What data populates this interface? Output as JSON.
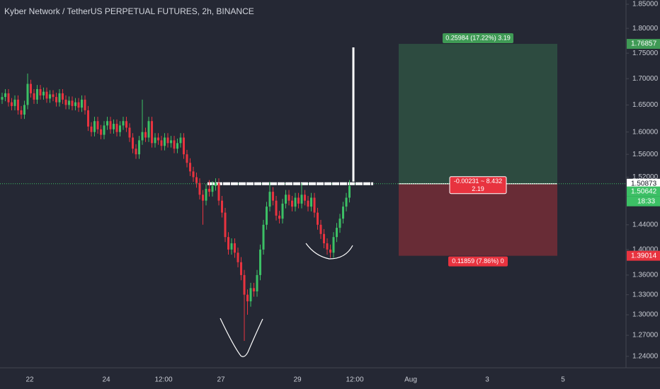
{
  "chart_data": {
    "type": "candlestick",
    "title": "Kyber Network / TetherUS PERPETUAL FUTURES, 2h, BINANCE",
    "log_scale": true,
    "grid": false,
    "up_color": "#3cc065",
    "down_color": "#e8333f",
    "ylim": [
      1.224,
      1.859
    ],
    "yticks": [
      {
        "value": 1.85,
        "label": "1.85000"
      },
      {
        "value": 1.8,
        "label": "1.80000"
      },
      {
        "value": 1.75,
        "label": "1.75000"
      },
      {
        "value": 1.7,
        "label": "1.70000"
      },
      {
        "value": 1.65,
        "label": "1.65000"
      },
      {
        "value": 1.6,
        "label": "1.60000"
      },
      {
        "value": 1.56,
        "label": "1.56000"
      },
      {
        "value": 1.52,
        "label": "1.52000"
      },
      {
        "value": 1.44,
        "label": "1.44000"
      },
      {
        "value": 1.4,
        "label": "1.40000"
      },
      {
        "value": 1.36,
        "label": "1.36000"
      },
      {
        "value": 1.33,
        "label": "1.33000"
      },
      {
        "value": 1.3,
        "label": "1.30000"
      },
      {
        "value": 1.27,
        "label": "1.27000"
      },
      {
        "value": 1.24,
        "label": "1.24000"
      }
    ],
    "xtick_labels": [
      "22",
      "24",
      "12:00",
      "27",
      "29",
      "12:00",
      "Aug",
      "3",
      "5"
    ],
    "ohlc": [
      [
        1.66,
        1.673,
        1.652,
        1.665
      ],
      [
        1.665,
        1.68,
        1.657,
        1.672
      ],
      [
        1.672,
        1.68,
        1.647,
        1.655
      ],
      [
        1.655,
        1.663,
        1.64,
        1.648
      ],
      [
        1.648,
        1.668,
        1.64,
        1.66
      ],
      [
        1.66,
        1.668,
        1.632,
        1.64
      ],
      [
        1.64,
        1.648,
        1.624,
        1.632
      ],
      [
        1.632,
        1.658,
        1.624,
        1.65
      ],
      [
        1.65,
        1.71,
        1.642,
        1.69
      ],
      [
        1.69,
        1.698,
        1.664,
        1.672
      ],
      [
        1.672,
        1.68,
        1.652,
        1.66
      ],
      [
        1.66,
        1.688,
        1.652,
        1.68
      ],
      [
        1.68,
        1.688,
        1.66,
        1.668
      ],
      [
        1.668,
        1.683,
        1.66,
        1.675
      ],
      [
        1.675,
        1.683,
        1.654,
        1.662
      ],
      [
        1.662,
        1.678,
        1.654,
        1.67
      ],
      [
        1.67,
        1.678,
        1.657,
        1.665
      ],
      [
        1.665,
        1.673,
        1.647,
        1.655
      ],
      [
        1.655,
        1.68,
        1.647,
        1.672
      ],
      [
        1.672,
        1.68,
        1.652,
        1.66
      ],
      [
        1.66,
        1.668,
        1.642,
        1.65
      ],
      [
        1.65,
        1.666,
        1.642,
        1.658
      ],
      [
        1.658,
        1.666,
        1.64,
        1.648
      ],
      [
        1.648,
        1.663,
        1.64,
        1.655
      ],
      [
        1.655,
        1.663,
        1.637,
        1.645
      ],
      [
        1.645,
        1.668,
        1.637,
        1.66
      ],
      [
        1.66,
        1.668,
        1.632,
        1.64
      ],
      [
        1.64,
        1.648,
        1.602,
        1.61
      ],
      [
        1.61,
        1.618,
        1.592,
        1.6
      ],
      [
        1.6,
        1.628,
        1.592,
        1.62
      ],
      [
        1.62,
        1.628,
        1.597,
        1.605
      ],
      [
        1.605,
        1.613,
        1.587,
        1.595
      ],
      [
        1.595,
        1.62,
        1.587,
        1.612
      ],
      [
        1.612,
        1.628,
        1.604,
        1.62
      ],
      [
        1.62,
        1.628,
        1.597,
        1.605
      ],
      [
        1.605,
        1.623,
        1.597,
        1.615
      ],
      [
        1.615,
        1.623,
        1.592,
        1.6
      ],
      [
        1.6,
        1.62,
        1.592,
        1.612
      ],
      [
        1.612,
        1.628,
        1.604,
        1.62
      ],
      [
        1.62,
        1.628,
        1.6,
        1.608
      ],
      [
        1.608,
        1.616,
        1.582,
        1.59
      ],
      [
        1.59,
        1.598,
        1.562,
        1.57
      ],
      [
        1.57,
        1.578,
        1.552,
        1.56
      ],
      [
        1.56,
        1.593,
        1.552,
        1.585
      ],
      [
        1.585,
        1.66,
        1.577,
        1.6
      ],
      [
        1.6,
        1.608,
        1.582,
        1.59
      ],
      [
        1.59,
        1.628,
        1.582,
        1.62
      ],
      [
        1.62,
        1.628,
        1.572,
        1.58
      ],
      [
        1.58,
        1.598,
        1.572,
        1.59
      ],
      [
        1.59,
        1.598,
        1.577,
        1.585
      ],
      [
        1.585,
        1.593,
        1.567,
        1.575
      ],
      [
        1.575,
        1.598,
        1.567,
        1.59
      ],
      [
        1.59,
        1.598,
        1.572,
        1.58
      ],
      [
        1.58,
        1.593,
        1.572,
        1.585
      ],
      [
        1.585,
        1.593,
        1.562,
        1.57
      ],
      [
        1.57,
        1.588,
        1.562,
        1.58
      ],
      [
        1.58,
        1.598,
        1.572,
        1.59
      ],
      [
        1.59,
        1.598,
        1.552,
        1.56
      ],
      [
        1.56,
        1.568,
        1.537,
        1.545
      ],
      [
        1.545,
        1.553,
        1.522,
        1.53
      ],
      [
        1.53,
        1.538,
        1.512,
        1.52
      ],
      [
        1.52,
        1.528,
        1.502,
        1.51
      ],
      [
        1.51,
        1.518,
        1.482,
        1.49
      ],
      [
        1.49,
        1.498,
        1.44,
        1.48
      ],
      [
        1.48,
        1.508,
        1.472,
        1.5
      ],
      [
        1.5,
        1.515,
        1.487,
        1.495
      ],
      [
        1.495,
        1.513,
        1.487,
        1.505
      ],
      [
        1.505,
        1.518,
        1.497,
        1.51
      ],
      [
        1.51,
        1.518,
        1.472,
        1.48
      ],
      [
        1.48,
        1.488,
        1.452,
        1.46
      ],
      [
        1.46,
        1.468,
        1.412,
        1.42
      ],
      [
        1.42,
        1.428,
        1.392,
        1.4
      ],
      [
        1.4,
        1.418,
        1.392,
        1.41
      ],
      [
        1.41,
        1.418,
        1.387,
        1.395
      ],
      [
        1.395,
        1.403,
        1.372,
        1.38
      ],
      [
        1.38,
        1.388,
        1.352,
        1.36
      ],
      [
        1.36,
        1.368,
        1.262,
        1.33
      ],
      [
        1.33,
        1.338,
        1.3,
        1.32
      ],
      [
        1.32,
        1.348,
        1.312,
        1.34
      ],
      [
        1.34,
        1.348,
        1.327,
        1.335
      ],
      [
        1.335,
        1.368,
        1.327,
        1.36
      ],
      [
        1.36,
        1.408,
        1.352,
        1.4
      ],
      [
        1.4,
        1.448,
        1.392,
        1.44
      ],
      [
        1.44,
        1.478,
        1.432,
        1.47
      ],
      [
        1.47,
        1.512,
        1.462,
        1.495
      ],
      [
        1.495,
        1.503,
        1.472,
        1.48
      ],
      [
        1.48,
        1.488,
        1.447,
        1.455
      ],
      [
        1.455,
        1.463,
        1.442,
        1.45
      ],
      [
        1.45,
        1.483,
        1.442,
        1.475
      ],
      [
        1.475,
        1.498,
        1.467,
        1.49
      ],
      [
        1.49,
        1.498,
        1.472,
        1.48
      ],
      [
        1.48,
        1.488,
        1.462,
        1.47
      ],
      [
        1.47,
        1.493,
        1.462,
        1.485
      ],
      [
        1.485,
        1.493,
        1.467,
        1.475
      ],
      [
        1.475,
        1.51,
        1.467,
        1.49
      ],
      [
        1.49,
        1.498,
        1.472,
        1.48
      ],
      [
        1.48,
        1.488,
        1.462,
        1.47
      ],
      [
        1.47,
        1.493,
        1.462,
        1.485
      ],
      [
        1.485,
        1.493,
        1.452,
        1.46
      ],
      [
        1.46,
        1.468,
        1.432,
        1.44
      ],
      [
        1.44,
        1.448,
        1.417,
        1.425
      ],
      [
        1.425,
        1.433,
        1.402,
        1.41
      ],
      [
        1.41,
        1.418,
        1.392,
        1.4
      ],
      [
        1.4,
        1.408,
        1.387,
        1.395
      ],
      [
        1.395,
        1.428,
        1.387,
        1.42
      ],
      [
        1.42,
        1.443,
        1.412,
        1.435
      ],
      [
        1.435,
        1.458,
        1.427,
        1.45
      ],
      [
        1.45,
        1.478,
        1.442,
        1.47
      ],
      [
        1.47,
        1.493,
        1.462,
        1.485
      ],
      [
        1.485,
        1.515,
        1.477,
        1.505
      ]
    ],
    "position": {
      "target": {
        "value": 1.76857,
        "label": "1.76857"
      },
      "entry": {
        "value": 1.50873,
        "label": "1.50873"
      },
      "stop": {
        "value": 1.39014,
        "label": "1.39014"
      },
      "target_text": "0.25984 (17.22%) 3.19",
      "center_text": "-0.00231 ~ 8.432",
      "center_subtext": "2.19",
      "stop_text": "0.11859 (7.86%) 0"
    },
    "last_price": {
      "value": 1.50642,
      "label": "1.50642",
      "countdown": "18:33"
    }
  }
}
